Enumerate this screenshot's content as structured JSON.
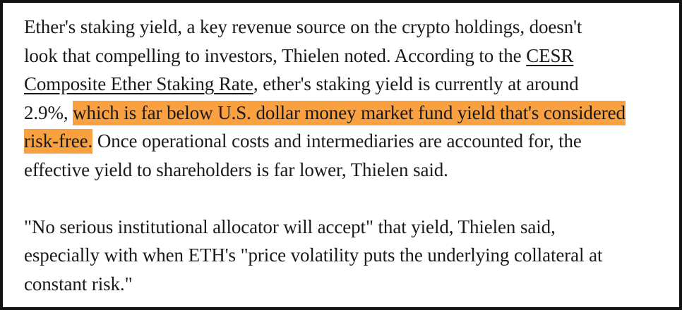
{
  "article": {
    "paragraph1": {
      "line1": "Ether's staking yield, a key revenue source on the crypto holdings, doesn't",
      "line2_start": "look that compelling to investors, Thielen noted. According to the ",
      "link_part1": "CESR",
      "link_part2": "Composite Ether Staking Rate",
      "line3_end": ", ether's staking yield is currently at around",
      "line4_start": "2.9%, ",
      "highlight_part1": "which is far below U.S. dollar money market fund yield that's considered",
      "highlight_part2": "risk-free.",
      "line5_end": " Once operational costs and intermediaries are accounted for, the",
      "line6": "effective yield to shareholders is far lower, Thielen said."
    },
    "paragraph2": {
      "line1": "\"No serious institutional allocator will accept\" that yield, Thielen said,",
      "line2": "especially with when ETH's \"price volatility puts the underlying collateral at",
      "line3": "constant risk.\""
    }
  },
  "colors": {
    "highlight": "#f9a040",
    "text": "#1a1a1a",
    "border": "#111111"
  }
}
